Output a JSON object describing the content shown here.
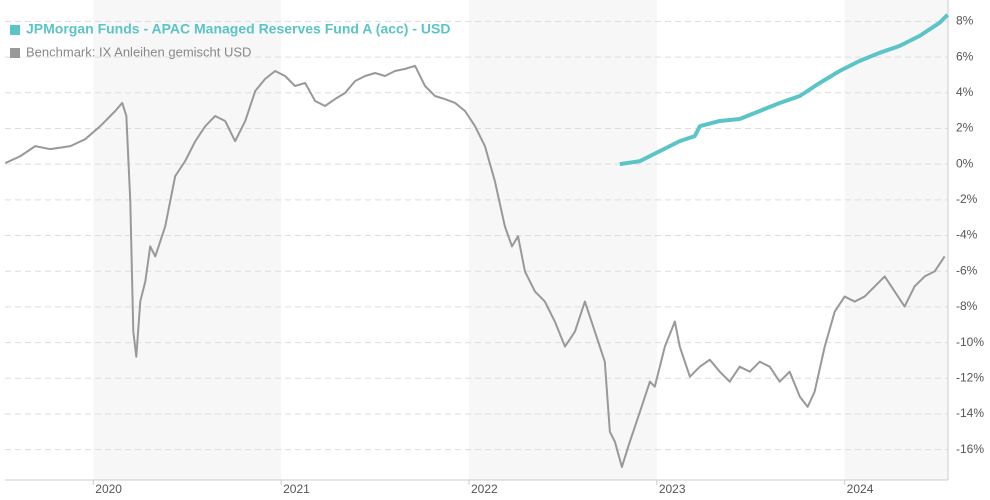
{
  "chart_data": {
    "type": "line",
    "xlim": [
      2019.53,
      2024.55
    ],
    "xticks": [
      2020,
      2021,
      2022,
      2023,
      2024
    ],
    "ylim": [
      -17.7,
      9.2
    ],
    "yticks": [
      {
        "value": -16,
        "label": "-16%"
      },
      {
        "value": -14,
        "label": "-14%"
      },
      {
        "value": -12,
        "label": "-12%"
      },
      {
        "value": -10,
        "label": "-10%"
      },
      {
        "value": -8,
        "label": "-8%"
      },
      {
        "value": -6,
        "label": "-6%"
      },
      {
        "value": -4,
        "label": "-4%"
      },
      {
        "value": -2,
        "label": "-2%"
      },
      {
        "value": 0,
        "label": "0%"
      },
      {
        "value": 2,
        "label": "2%"
      },
      {
        "value": 4,
        "label": "4%"
      },
      {
        "value": 6,
        "label": "6%"
      },
      {
        "value": 8,
        "label": "8%"
      }
    ],
    "grid": true,
    "legend": "top-left",
    "series": [
      {
        "name": "JPMorgan Funds - APAC Managed Reserves Fund A (acc) - USD",
        "color": "#5bc4c8",
        "x": [
          2022.803,
          2022.91,
          2023.016,
          2023.122,
          2023.202,
          2023.229,
          2023.335,
          2023.441,
          2023.548,
          2023.654,
          2023.761,
          2023.867,
          2023.973,
          2024.08,
          2024.186,
          2024.293,
          2024.399,
          2024.505,
          2024.548
        ],
        "values": [
          0.0,
          0.17,
          0.73,
          1.29,
          1.57,
          2.13,
          2.42,
          2.53,
          2.98,
          3.43,
          3.82,
          4.55,
          5.22,
          5.79,
          6.24,
          6.63,
          7.19,
          7.92,
          8.37
        ]
      },
      {
        "name": "Benchmark: IX Anleihen gemischt USD",
        "color": "#999999",
        "x": [
          2019.532,
          2019.612,
          2019.691,
          2019.771,
          2019.878,
          2019.957,
          2020.037,
          2020.117,
          2020.154,
          2020.176,
          2020.197,
          2020.213,
          2020.229,
          2020.25,
          2020.277,
          2020.303,
          2020.33,
          2020.383,
          2020.436,
          2020.489,
          2020.543,
          2020.596,
          2020.649,
          2020.702,
          2020.755,
          2020.809,
          2020.862,
          2020.915,
          2020.968,
          2021.021,
          2021.074,
          2021.128,
          2021.181,
          2021.234,
          2021.287,
          2021.34,
          2021.394,
          2021.447,
          2021.5,
          2021.553,
          2021.606,
          2021.66,
          2021.713,
          2021.766,
          2021.819,
          2021.872,
          2021.926,
          2021.979,
          2022.032,
          2022.085,
          2022.138,
          2022.191,
          2022.229,
          2022.261,
          2022.298,
          2022.351,
          2022.404,
          2022.457,
          2022.511,
          2022.564,
          2022.617,
          2022.67,
          2022.723,
          2022.75,
          2022.777,
          2022.814,
          2022.856,
          2022.91,
          2022.963,
          2022.989,
          2023.043,
          2023.096,
          2023.122,
          2023.176,
          2023.229,
          2023.282,
          2023.335,
          2023.388,
          2023.441,
          2023.495,
          2023.548,
          2023.601,
          2023.654,
          2023.707,
          2023.761,
          2023.803,
          2023.84,
          2023.894,
          2023.947,
          2024.0,
          2024.053,
          2024.106,
          2024.16,
          2024.213,
          2024.266,
          2024.319,
          2024.372,
          2024.426,
          2024.479,
          2024.532
        ],
        "values": [
          0.06,
          0.45,
          1.01,
          0.84,
          1.01,
          1.4,
          2.13,
          2.98,
          3.43,
          2.7,
          -2.08,
          -9.38,
          -10.79,
          -7.7,
          -6.57,
          -4.61,
          -5.17,
          -3.48,
          -0.67,
          0.17,
          1.29,
          2.13,
          2.7,
          2.42,
          1.29,
          2.42,
          4.1,
          4.78,
          5.22,
          4.94,
          4.38,
          4.55,
          3.54,
          3.26,
          3.65,
          3.99,
          4.66,
          4.94,
          5.11,
          4.94,
          5.22,
          5.34,
          5.51,
          4.38,
          3.82,
          3.65,
          3.43,
          2.98,
          2.13,
          1.01,
          -0.96,
          -3.48,
          -4.61,
          -4.04,
          -6.01,
          -7.13,
          -7.7,
          -8.82,
          -10.22,
          -9.38,
          -7.7,
          -9.38,
          -11.07,
          -15.0,
          -15.56,
          -16.97,
          -15.56,
          -13.88,
          -12.19,
          -12.47,
          -10.22,
          -8.82,
          -10.22,
          -11.91,
          -11.35,
          -10.96,
          -11.63,
          -12.19,
          -11.35,
          -11.63,
          -11.07,
          -11.35,
          -12.19,
          -11.63,
          -13.03,
          -13.6,
          -12.75,
          -10.22,
          -8.26,
          -7.42,
          -7.7,
          -7.42,
          -6.85,
          -6.29,
          -7.13,
          -7.98,
          -6.85,
          -6.29,
          -6.01,
          -5.17
        ]
      }
    ]
  }
}
